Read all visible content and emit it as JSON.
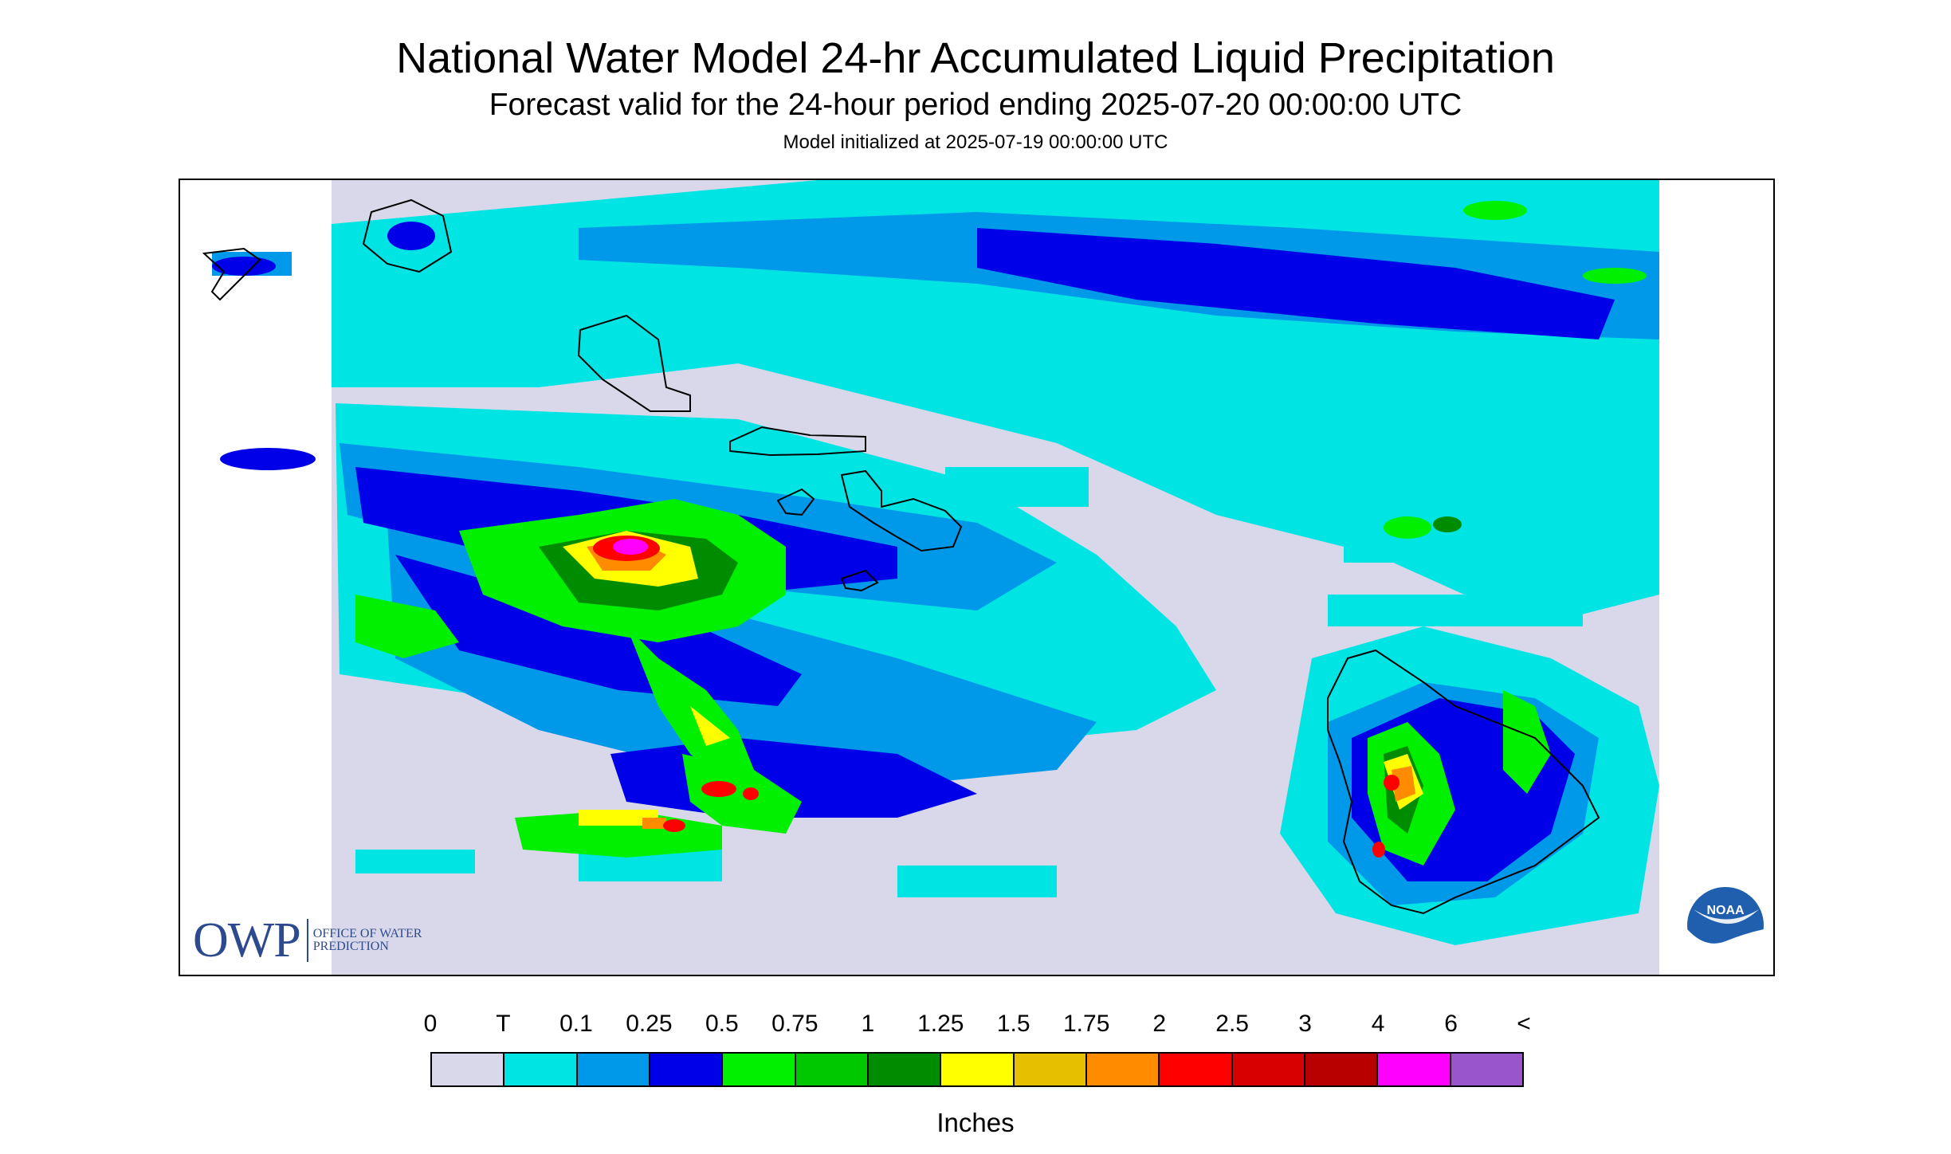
{
  "titles": {
    "main": "National Water Model 24-hr Accumulated Liquid Precipitation",
    "subtitle": "Forecast valid for the 24-hour period ending 2025-07-20 00:00:00 UTC",
    "init": "Model initialized at 2025-07-19 00:00:00 UTC"
  },
  "map": {
    "region": "Hawaiian Islands",
    "islands": [
      "Niihau",
      "Kauai",
      "Oahu",
      "Molokai",
      "Lanai",
      "Maui",
      "Kahoolawe",
      "Hawaii"
    ],
    "no_data_color": "#d8d8ea"
  },
  "logos": {
    "owp_mark": "OWP",
    "owp_text": "Office of Water Prediction",
    "noaa_text": "NOAA"
  },
  "legend": {
    "labels": [
      "0",
      "T",
      "0.1",
      "0.25",
      "0.5",
      "0.75",
      "1",
      "1.25",
      "1.5",
      "1.75",
      "2",
      "2.5",
      "3",
      "4",
      "6",
      "<"
    ],
    "colors": [
      "#d8d8ea",
      "#00e4e4",
      "#0098e8",
      "#0000e8",
      "#00f000",
      "#00c800",
      "#008c00",
      "#ffff00",
      "#e6c000",
      "#ff8c00",
      "#ff0000",
      "#d80000",
      "#b80000",
      "#ff00ff",
      "#9955cc"
    ],
    "units": "Inches"
  }
}
